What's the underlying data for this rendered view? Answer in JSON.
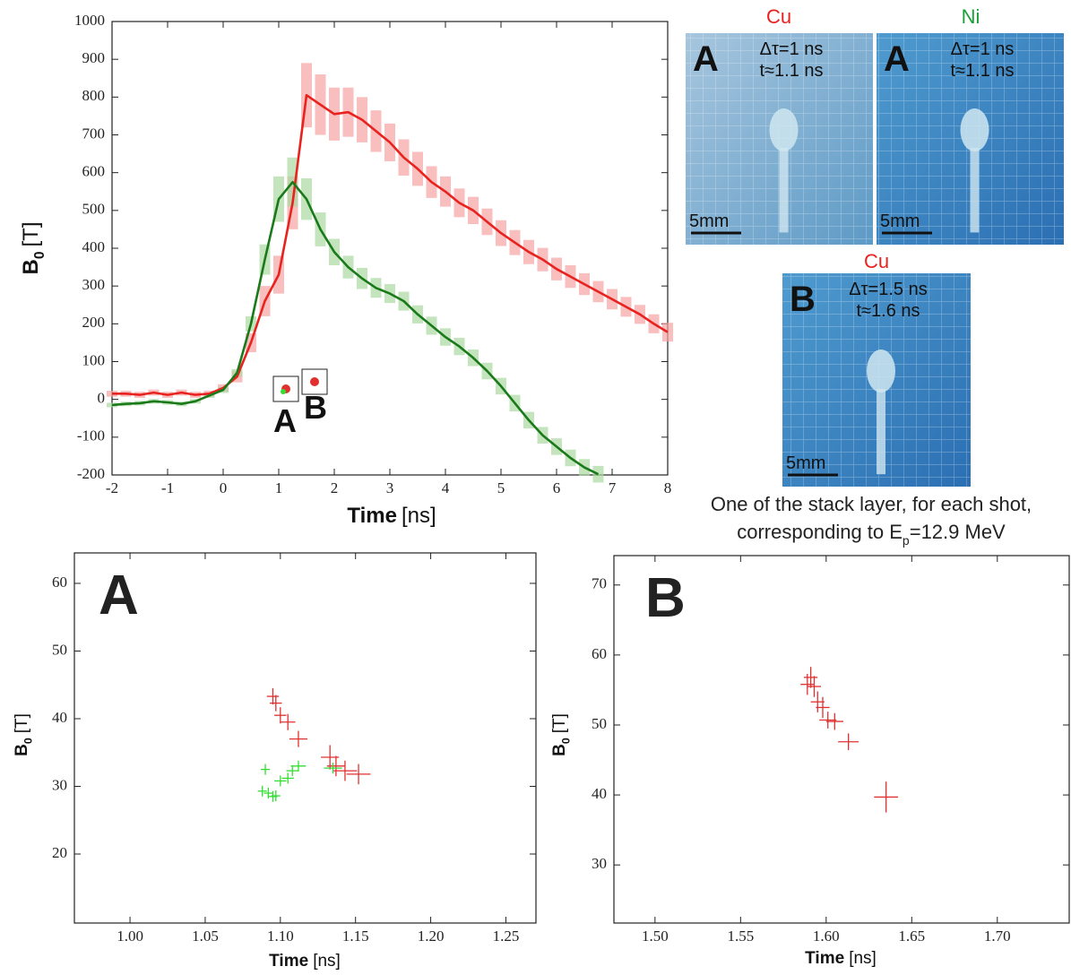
{
  "chart_data": [
    {
      "type": "line",
      "xlabel": {
        "name": "Time",
        "unit": "[ns]"
      },
      "ylabel": {
        "name": "B",
        "sub": "0",
        "unit": "[T]"
      },
      "xlim": [
        -2,
        8
      ],
      "xticks": [
        -2,
        -1,
        0,
        1,
        2,
        3,
        4,
        5,
        6,
        7,
        8
      ],
      "ylim": [
        -200,
        1000
      ],
      "yticks": [
        -200,
        -100,
        0,
        100,
        200,
        300,
        400,
        500,
        600,
        700,
        800,
        900,
        1000
      ],
      "annotations": [
        "A",
        "B"
      ],
      "x": [
        -2,
        -1.75,
        -1.5,
        -1.25,
        -1,
        -0.75,
        -0.5,
        -0.25,
        0,
        0.25,
        0.5,
        0.75,
        1,
        1.25,
        1.5,
        1.75,
        2,
        2.25,
        2.5,
        2.75,
        3,
        3.25,
        3.5,
        3.75,
        4,
        4.25,
        4.5,
        4.75,
        5,
        5.25,
        5.5,
        5.75,
        6,
        6.25,
        6.5,
        6.75,
        7,
        7.25,
        7.5,
        7.75,
        8
      ],
      "series": [
        {
          "color": "#e8231f",
          "error_color": "#f7a3a3",
          "values": [
            15,
            15,
            12,
            18,
            12,
            18,
            12,
            15,
            30,
            60,
            150,
            260,
            330,
            520,
            805,
            780,
            755,
            760,
            740,
            710,
            680,
            640,
            610,
            575,
            550,
            520,
            500,
            470,
            440,
            415,
            390,
            370,
            345,
            325,
            305,
            285,
            265,
            245,
            225,
            200,
            178
          ],
          "errors": [
            8,
            8,
            8,
            8,
            8,
            8,
            8,
            8,
            10,
            15,
            25,
            40,
            50,
            70,
            85,
            80,
            70,
            65,
            60,
            55,
            50,
            48,
            45,
            42,
            40,
            38,
            36,
            35,
            34,
            33,
            32,
            31,
            30,
            30,
            29,
            28,
            27,
            26,
            25,
            25,
            25
          ]
        },
        {
          "color": "#1a7a1a",
          "error_color": "#a9d9a0",
          "values": [
            -15,
            -12,
            -10,
            -5,
            -8,
            -12,
            -5,
            10,
            25,
            70,
            200,
            370,
            530,
            575,
            530,
            450,
            390,
            350,
            320,
            295,
            280,
            260,
            225,
            195,
            165,
            140,
            110,
            75,
            35,
            -10,
            -55,
            -95,
            -125,
            -155,
            -180,
            -198,
            null,
            null,
            null,
            null,
            null
          ],
          "errors": [
            6,
            6,
            6,
            6,
            6,
            6,
            6,
            6,
            8,
            10,
            20,
            40,
            60,
            65,
            55,
            45,
            35,
            30,
            28,
            26,
            25,
            25,
            24,
            24,
            23,
            23,
            22,
            22,
            22,
            22,
            22,
            22,
            22,
            22,
            22,
            22,
            null,
            null,
            null,
            null,
            null
          ]
        }
      ]
    },
    {
      "type": "scatter",
      "title": "A",
      "xlabel": {
        "name": "Time",
        "unit": "[ns]"
      },
      "ylabel": {
        "name": "B",
        "sub": "0",
        "unit": "[T]"
      },
      "xlim": [
        0.963,
        1.27
      ],
      "xticks": [
        {
          "value": 1,
          "label": "1.00"
        },
        1.05,
        {
          "value": 1.1,
          "label": "1.10"
        },
        1.15,
        {
          "value": 1.2,
          "label": "1.20"
        },
        1.25
      ],
      "ylim": [
        9.8,
        64.5
      ],
      "yticks": [
        20,
        30,
        40,
        50,
        60
      ],
      "series": [
        {
          "color": "#e03030",
          "x": [
            1.095,
            1.097,
            1.1,
            1.105,
            1.112,
            1.133,
            1.137,
            1.143,
            1.152
          ],
          "values": [
            43.3,
            42.3,
            40.5,
            39.5,
            37,
            34.3,
            33,
            32.3,
            31.8
          ],
          "xerr": [
            0.004,
            0.004,
            0.004,
            0.005,
            0.006,
            0.006,
            0.006,
            0.008,
            0.008
          ],
          "yerr": [
            1.2,
            1.2,
            1.2,
            1.2,
            1.2,
            1.8,
            1.5,
            1.5,
            1.5
          ]
        },
        {
          "color": "#33dd33",
          "x": [
            1.09,
            1.088,
            1.092,
            1.095,
            1.097,
            1.1,
            1.105,
            1.108,
            1.112,
            1.135
          ],
          "values": [
            32.5,
            29.3,
            29,
            28.5,
            28.6,
            30.8,
            31.2,
            32.3,
            33,
            32.7
          ],
          "xerr": [
            0.003,
            0.003,
            0.003,
            0.003,
            0.003,
            0.004,
            0.004,
            0.004,
            0.005,
            0.006
          ],
          "yerr": [
            0.8,
            0.8,
            0.8,
            0.8,
            0.8,
            0.8,
            0.8,
            0.8,
            0.8,
            0.8
          ]
        }
      ]
    },
    {
      "type": "scatter",
      "title": "B",
      "xlabel": {
        "name": "Time",
        "unit": "[ns]"
      },
      "ylabel": {
        "name": "B",
        "sub": "0",
        "unit": "[T]"
      },
      "xlim": [
        1.476,
        1.742
      ],
      "xticks": [
        {
          "value": 1.5,
          "label": "1.50"
        },
        1.55,
        {
          "value": 1.6,
          "label": "1.60"
        },
        1.65,
        {
          "value": 1.7,
          "label": "1.70"
        }
      ],
      "ylim": [
        21.7,
        74.2
      ],
      "yticks": [
        30,
        40,
        50,
        60,
        70
      ],
      "series": [
        {
          "color": "#e03030",
          "x": [
            1.589,
            1.591,
            1.593,
            1.595,
            1.598,
            1.601,
            1.605,
            1.613,
            1.635
          ],
          "values": [
            55.8,
            56.8,
            55.5,
            53.3,
            52.5,
            50.7,
            50.5,
            47.6,
            39.7
          ],
          "xerr": [
            0.004,
            0.004,
            0.004,
            0.004,
            0.004,
            0.005,
            0.005,
            0.006,
            0.007
          ],
          "yerr": [
            1.5,
            1.5,
            1.5,
            1.5,
            1.5,
            1.2,
            1.2,
            1.2,
            2.2
          ]
        }
      ]
    }
  ],
  "images": [
    {
      "material": "Cu",
      "material_color": "#e8231f",
      "letter": "A",
      "delta": "Δτ=1 ns",
      "time": "t≈1.1 ns",
      "scale": "5mm"
    },
    {
      "material": "Ni",
      "material_color": "#1aa03a",
      "letter": "A",
      "delta": "Δτ=1 ns",
      "time": "t≈1.1 ns",
      "scale": "5mm"
    },
    {
      "material": "Cu",
      "material_color": "#e8231f",
      "letter": "B",
      "delta": "Δτ=1.5 ns",
      "time": "t≈1.6 ns",
      "scale": "5mm"
    }
  ],
  "caption": {
    "line1": "One of the stack layer, for each shot,",
    "line2": "corresponding to E",
    "sub": "p",
    "line2_end": "=12.9 MeV"
  }
}
